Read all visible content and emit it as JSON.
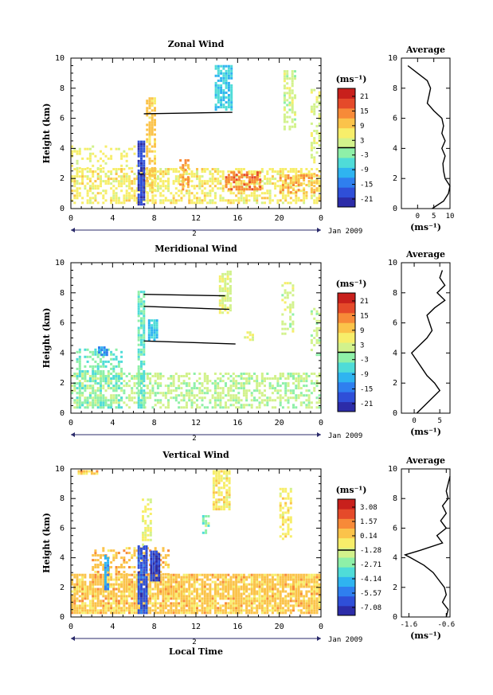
{
  "colors": {
    "cmap": [
      "#2c2ca8",
      "#2f4fd8",
      "#2f7fef",
      "#2fb4f0",
      "#4fdcd8",
      "#8ef0a8",
      "#d2f28c",
      "#f7ee6a",
      "#fbc34a",
      "#f78a38",
      "#e54a2a",
      "#c8201c"
    ],
    "axis": "#000000"
  },
  "common": {
    "ylabel": "Height (km)",
    "xlabel": "Local Time",
    "date_label": "Jan 2009",
    "day_marker": "2",
    "unit_label": "(ms⁻¹)",
    "avg_title": "Average",
    "avg_xlabel": "(ms⁻¹)"
  },
  "chart_data": [
    {
      "type": "heatmap",
      "title": "Zonal Wind",
      "x_ticks": [
        "0",
        "4",
        "8",
        "12",
        "16",
        "20",
        "0"
      ],
      "y_ticks": [
        "0",
        "2",
        "4",
        "6",
        "8",
        "10"
      ],
      "xlim": [
        0,
        24
      ],
      "ylim": [
        0,
        10
      ],
      "colorbar": {
        "ticks": [
          "21",
          "15",
          "9",
          "3",
          "-3",
          "-9",
          "-15",
          "-21"
        ],
        "range": [
          -24,
          24
        ],
        "zero_line_value": 0
      },
      "patches": [
        {
          "t0": 0,
          "t1": 24,
          "h0": 0.3,
          "h1": 2.6,
          "value": 6,
          "density": 0.55
        },
        {
          "t0": 0,
          "t1": 7,
          "h0": 2.6,
          "h1": 4.2,
          "value": 5,
          "density": 0.25
        },
        {
          "t0": 6.4,
          "t1": 7.0,
          "h0": 0.2,
          "h1": 4.4,
          "value": -19,
          "density": 0.95
        },
        {
          "t0": 7.2,
          "t1": 8.2,
          "h0": 1.0,
          "h1": 7.4,
          "value": 9,
          "density": 0.6
        },
        {
          "t0": 13.8,
          "t1": 15.4,
          "h0": 6.5,
          "h1": 9.5,
          "value": -7,
          "density": 0.75
        },
        {
          "t0": 14.8,
          "t1": 18.2,
          "h0": 1.2,
          "h1": 2.4,
          "value": 15,
          "density": 0.6
        },
        {
          "t0": 10.4,
          "t1": 11.4,
          "h0": 1.2,
          "h1": 3.2,
          "value": 12,
          "density": 0.55
        },
        {
          "t0": 20,
          "t1": 23.6,
          "h0": 1.0,
          "h1": 2.2,
          "value": 11,
          "density": 0.5
        },
        {
          "t0": 20.4,
          "t1": 21.6,
          "h0": 5.2,
          "h1": 9.2,
          "value": 2,
          "density": 0.5
        },
        {
          "t0": 23,
          "t1": 24,
          "h0": 3.0,
          "h1": 8.0,
          "value": 3,
          "density": 0.35
        }
      ],
      "lines": [
        {
          "t0": 7.0,
          "h0": 6.3,
          "t1": 15.5,
          "h1": 6.4
        },
        {
          "t0": 6.5,
          "h0": 2.3,
          "t1": 7.0,
          "h1": 2.3
        }
      ],
      "avg": {
        "xlim": [
          -5,
          10
        ],
        "x_ticks": [
          0,
          5,
          10
        ],
        "x_tick_labels": [
          "0",
          "5",
          "10"
        ],
        "heights": [
          0,
          0.5,
          1,
          1.5,
          2,
          2.5,
          3,
          3.5,
          4,
          4.5,
          5,
          5.5,
          6,
          6.5,
          7,
          7.5,
          8,
          8.5,
          9,
          9.5
        ],
        "values": [
          4.5,
          8,
          9.5,
          10,
          8.5,
          8,
          7.8,
          8.5,
          7.5,
          8.5,
          7.5,
          8,
          7.5,
          5,
          3,
          3.5,
          4,
          3,
          0,
          -3
        ]
      }
    },
    {
      "type": "heatmap",
      "title": "Meridional Wind",
      "x_ticks": [
        "0",
        "4",
        "8",
        "12",
        "16",
        "20",
        "0"
      ],
      "y_ticks": [
        "0",
        "2",
        "4",
        "6",
        "8",
        "10"
      ],
      "xlim": [
        0,
        24
      ],
      "ylim": [
        0,
        10
      ],
      "colorbar": {
        "ticks": [
          "21",
          "15",
          "9",
          "3",
          "-3",
          "-9",
          "-15",
          "-21"
        ],
        "range": [
          -24,
          24
        ],
        "zero_line_value": 0
      },
      "patches": [
        {
          "t0": 0,
          "t1": 24,
          "h0": 0.3,
          "h1": 2.6,
          "value": 1,
          "density": 0.5
        },
        {
          "t0": 0.5,
          "t1": 5,
          "h0": 0.3,
          "h1": 4.3,
          "value": -3,
          "density": 0.4
        },
        {
          "t0": 2.6,
          "t1": 3.4,
          "h0": 3.8,
          "h1": 4.3,
          "value": -12,
          "density": 0.8
        },
        {
          "t0": 6.4,
          "t1": 7.0,
          "h0": 0.3,
          "h1": 8.0,
          "value": -4,
          "density": 0.8
        },
        {
          "t0": 7.4,
          "t1": 8.4,
          "h0": 4.8,
          "h1": 6.2,
          "value": -8,
          "density": 0.85
        },
        {
          "t0": 14.2,
          "t1": 15.4,
          "h0": 6.6,
          "h1": 9.4,
          "value": 3,
          "density": 0.75
        },
        {
          "t0": 20.2,
          "t1": 21.4,
          "h0": 5.2,
          "h1": 8.6,
          "value": 2,
          "density": 0.5
        },
        {
          "t0": 23,
          "t1": 24,
          "h0": 3.8,
          "h1": 7.0,
          "value": 1,
          "density": 0.35
        },
        {
          "t0": 16.6,
          "t1": 17.6,
          "h0": 4.8,
          "h1": 5.4,
          "value": 5,
          "density": 0.4
        }
      ],
      "lines": [
        {
          "t0": 7.0,
          "h0": 7.9,
          "t1": 14.8,
          "h1": 7.8
        },
        {
          "t0": 7.0,
          "h0": 7.1,
          "t1": 15.2,
          "h1": 6.9
        },
        {
          "t0": 7.0,
          "h0": 4.8,
          "t1": 15.8,
          "h1": 4.6
        }
      ],
      "avg": {
        "xlim": [
          -2.5,
          7
        ],
        "x_ticks": [
          0,
          5
        ],
        "x_tick_labels": [
          "0",
          "5"
        ],
        "heights": [
          0,
          0.5,
          1,
          1.5,
          2,
          2.5,
          3,
          3.5,
          4,
          4.5,
          5,
          5.5,
          6,
          6.5,
          7,
          7.5,
          8,
          8.5,
          9,
          9.5
        ],
        "values": [
          0.5,
          2,
          3.5,
          5,
          4,
          2.5,
          1.5,
          0.5,
          -0.5,
          1,
          2.5,
          3.5,
          3,
          2.5,
          4,
          6,
          4.5,
          6,
          5,
          5.5
        ]
      }
    },
    {
      "type": "heatmap",
      "title": "Vertical Wind",
      "x_ticks": [
        "0",
        "4",
        "8",
        "12",
        "16",
        "20",
        "0"
      ],
      "y_ticks": [
        "0",
        "2",
        "4",
        "6",
        "8",
        "10"
      ],
      "xlim": [
        0,
        24
      ],
      "ylim": [
        0,
        10
      ],
      "colorbar": {
        "ticks": [
          "3.08",
          "1.57",
          "0.14",
          "-1.28",
          "-2.71",
          "-4.14",
          "-5.57",
          "-7.08"
        ],
        "range": [
          -7.8,
          3.8
        ],
        "zero_line_value": -1.28
      },
      "patches": [
        {
          "t0": 0,
          "t1": 24,
          "h0": 0.2,
          "h1": 2.8,
          "value": 0.3,
          "density": 0.85
        },
        {
          "t0": 2.0,
          "t1": 9.4,
          "h0": 2.8,
          "h1": 4.6,
          "value": 0.4,
          "density": 0.35
        },
        {
          "t0": 6.4,
          "t1": 7.4,
          "h0": 0.2,
          "h1": 4.8,
          "value": -6.2,
          "density": 0.9
        },
        {
          "t0": 7.6,
          "t1": 8.4,
          "h0": 2.4,
          "h1": 4.4,
          "value": -6.8,
          "density": 0.95
        },
        {
          "t0": 6.8,
          "t1": 7.8,
          "h0": 4.8,
          "h1": 8.0,
          "value": -0.8,
          "density": 0.55
        },
        {
          "t0": 3.2,
          "t1": 3.6,
          "h0": 1.8,
          "h1": 4.2,
          "value": -4.5,
          "density": 0.8
        },
        {
          "t0": 13.6,
          "t1": 15.2,
          "h0": 7.2,
          "h1": 9.8,
          "value": -0.5,
          "density": 0.75
        },
        {
          "t0": 20.0,
          "t1": 21.2,
          "h0": 5.2,
          "h1": 8.6,
          "value": -0.5,
          "density": 0.5
        },
        {
          "t0": 12.6,
          "t1": 13.2,
          "h0": 5.6,
          "h1": 6.8,
          "value": -2.5,
          "density": 0.7
        },
        {
          "t0": 0.4,
          "t1": 2.6,
          "h0": 9.6,
          "h1": 9.9,
          "value": 0.3,
          "density": 0.6
        }
      ],
      "lines": [],
      "avg": {
        "xlim": [
          -1.8,
          -0.5
        ],
        "x_ticks": [
          -1.6,
          -0.6
        ],
        "x_tick_labels": [
          "-1.6",
          "-0.6"
        ],
        "heights": [
          0,
          0.5,
          1,
          1.5,
          2,
          2.5,
          3,
          3.5,
          4,
          4.2,
          4.5,
          5,
          5.5,
          6,
          6.5,
          7,
          7.5,
          8,
          8.5,
          9,
          9.5
        ],
        "values": [
          -0.6,
          -0.55,
          -0.7,
          -0.6,
          -0.65,
          -0.8,
          -0.95,
          -1.2,
          -1.55,
          -1.7,
          -1.3,
          -0.7,
          -0.85,
          -0.6,
          -0.75,
          -0.6,
          -0.7,
          -0.55,
          -0.6,
          -0.55,
          -0.5
        ]
      }
    }
  ]
}
